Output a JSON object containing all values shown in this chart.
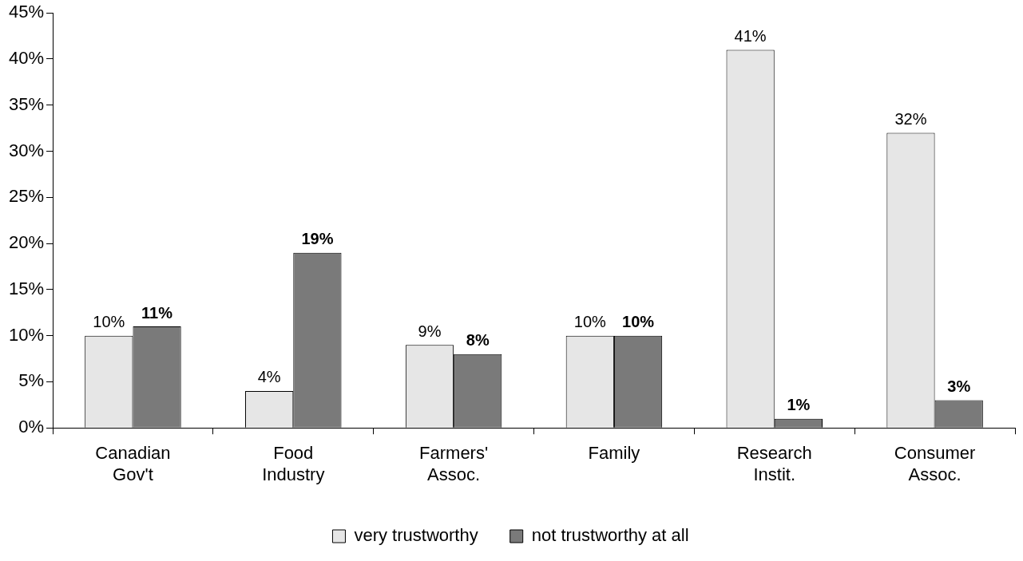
{
  "chart_data": {
    "type": "bar",
    "categories": [
      "Canadian Gov't",
      "Food Industry",
      "Farmers' Assoc.",
      "Family",
      "Research Instit.",
      "Consumer Assoc."
    ],
    "series": [
      {
        "name": "very trustworthy",
        "color": "#e6e6e6",
        "values": [
          10,
          4,
          9,
          10,
          41,
          32
        ],
        "value_labels": [
          "10%",
          "4%",
          "9%",
          "10%",
          "41%",
          "32%"
        ]
      },
      {
        "name": "not trustworthy at all",
        "color": "#7a7a7a",
        "values": [
          11,
          19,
          8,
          10,
          1,
          3
        ],
        "value_labels": [
          "11%",
          "19%",
          "8%",
          "10%",
          "1%",
          "3%"
        ]
      }
    ],
    "ylim": [
      0,
      45
    ],
    "yticks": [
      {
        "value": 0,
        "label": "0%"
      },
      {
        "value": 5,
        "label": "5%"
      },
      {
        "value": 10,
        "label": "10%"
      },
      {
        "value": 15,
        "label": "15%"
      },
      {
        "value": 20,
        "label": "20%"
      },
      {
        "value": 25,
        "label": "25%"
      },
      {
        "value": 30,
        "label": "30%"
      },
      {
        "value": 35,
        "label": "35%"
      },
      {
        "value": 40,
        "label": "40%"
      },
      {
        "value": 45,
        "label": "45%"
      }
    ],
    "grid": false,
    "legend": "bottom"
  }
}
